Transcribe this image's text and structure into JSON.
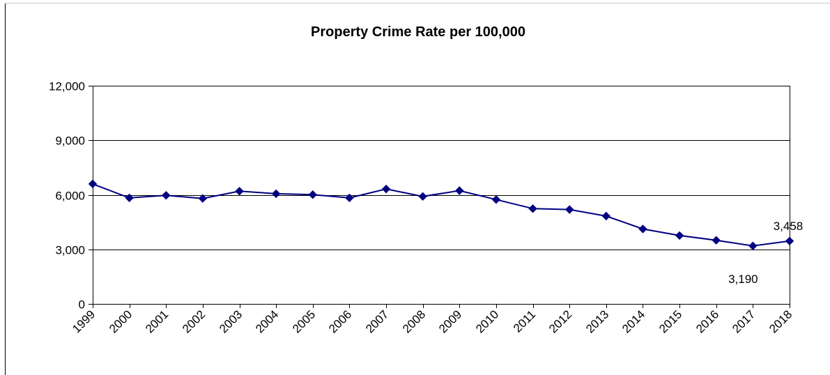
{
  "chart_data": {
    "type": "line",
    "title": "Property Crime Rate per 100,000",
    "xlabel": "",
    "ylabel": "",
    "categories": [
      "1999",
      "2000",
      "2001",
      "2002",
      "2003",
      "2004",
      "2005",
      "2006",
      "2007",
      "2008",
      "2009",
      "2010",
      "2011",
      "2012",
      "2013",
      "2014",
      "2015",
      "2016",
      "2017",
      "2018"
    ],
    "series": [
      {
        "name": "",
        "values": [
          6600,
          5830,
          5970,
          5800,
          6200,
          6060,
          6010,
          5830,
          6320,
          5910,
          6230,
          5740,
          5240,
          5190,
          4830,
          4120,
          3760,
          3500,
          3190,
          3458
        ]
      }
    ],
    "ylim": [
      0,
      12000
    ],
    "yticks": [
      0,
      3000,
      6000,
      9000,
      12000
    ],
    "ytick_labels": [
      "0",
      "3,000",
      "6,000",
      "9,000",
      "12,000"
    ],
    "grid": true,
    "legend": "none",
    "data_labels": [
      {
        "category": "2017",
        "text": "3,190"
      },
      {
        "category": "2018",
        "text": "3,458"
      }
    ],
    "colors": {
      "series": "#000080",
      "gridline": "#000000",
      "axis": "#000000"
    },
    "marker": "diamond-icon"
  }
}
